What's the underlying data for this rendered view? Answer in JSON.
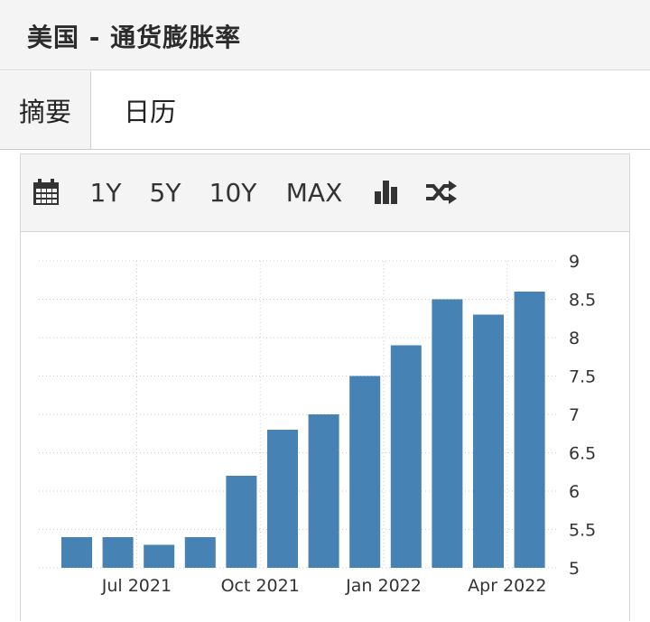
{
  "header": {
    "title": "美国 - 通货膨胀率"
  },
  "tabs": [
    {
      "label": "摘要",
      "active": true
    },
    {
      "label": "日历",
      "active": false
    }
  ],
  "toolbar": {
    "icons": [
      "calendar-icon",
      "bar-chart-icon",
      "shuffle-icon"
    ],
    "ranges": [
      "1Y",
      "5Y",
      "10Y",
      "MAX"
    ]
  },
  "colors": {
    "bar": "#4682b4",
    "grid": "#cccccc",
    "header_bg": "#f4f4f4"
  },
  "chart_data": {
    "type": "bar",
    "categories": [
      "2021-06",
      "2021-07",
      "2021-08",
      "2021-09",
      "2021-10",
      "2021-11",
      "2021-12",
      "2022-01",
      "2022-02",
      "2022-03",
      "2022-04",
      "2022-05"
    ],
    "values": [
      5.4,
      5.4,
      5.3,
      5.4,
      6.2,
      6.8,
      7.0,
      7.5,
      7.9,
      8.5,
      8.3,
      8.6
    ],
    "x_tick_labels": [
      {
        "label": "Jul 2021",
        "category": "2021-07"
      },
      {
        "label": "Oct 2021",
        "category": "2021-10"
      },
      {
        "label": "Jan 2022",
        "category": "2022-01"
      },
      {
        "label": "Apr 2022",
        "category": "2022-04"
      }
    ],
    "y_ticks": [
      "5",
      "5.5",
      "6",
      "6.5",
      "7",
      "7.5",
      "8",
      "8.5",
      "9"
    ],
    "ylim": [
      5,
      9
    ],
    "y_axis_side": "right",
    "grid": true,
    "title": "",
    "xlabel": "",
    "ylabel": ""
  }
}
